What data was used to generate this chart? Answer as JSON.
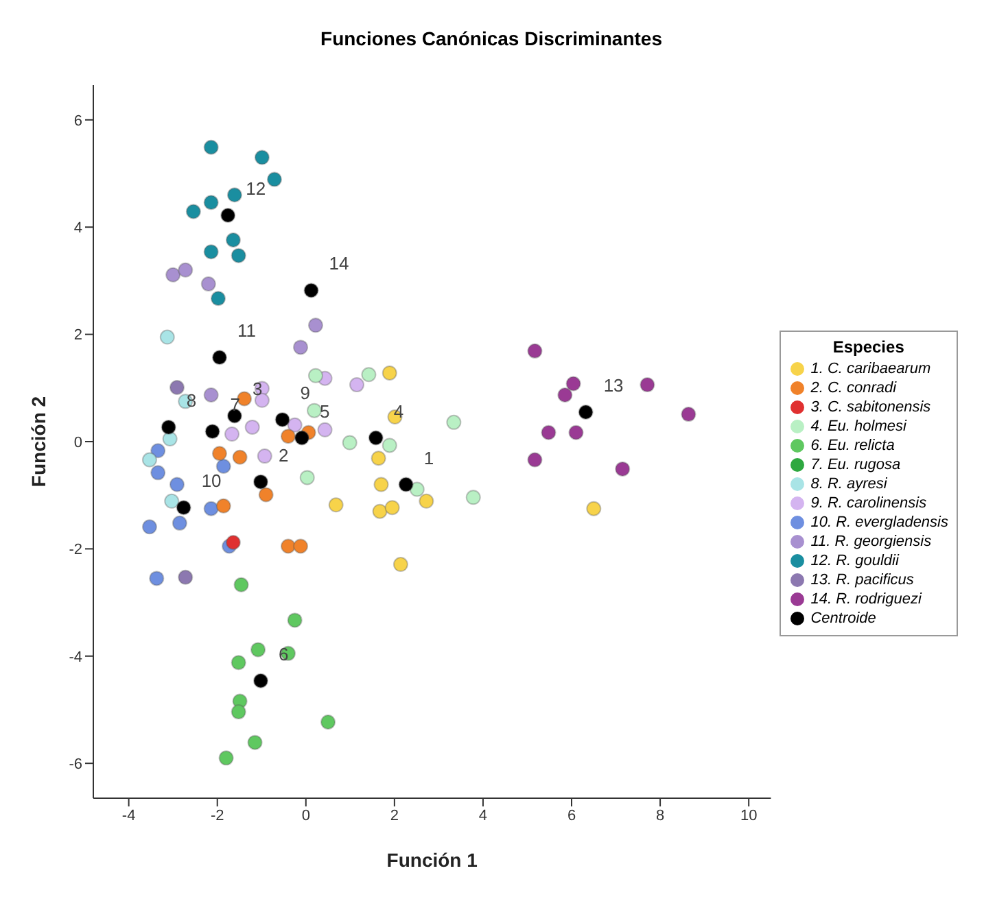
{
  "chart_data": {
    "type": "scatter",
    "title": "Funciones Canónicas Discriminantes",
    "xlabel": "Función 1",
    "ylabel": "Función 2",
    "legend_title": "Especies",
    "legend": "right",
    "marker": "circle",
    "grid": false,
    "xlim": [
      -4.8,
      10.5
    ],
    "ylim": [
      -6.65,
      6.65
    ],
    "xticks": [
      -4,
      -2,
      0,
      2,
      4,
      6,
      8,
      10
    ],
    "yticks": [
      -6,
      -4,
      -2,
      0,
      2,
      4,
      6
    ],
    "series": [
      {
        "name": "1. C. caribaearum",
        "color": "#f7d34a",
        "x": [
          1.89,
          2.01,
          1.64,
          1.7,
          0.68,
          1.67,
          1.95,
          2.72,
          2.14,
          6.5
        ],
        "values": [
          1.28,
          0.46,
          -0.31,
          -0.8,
          -1.18,
          -1.3,
          -1.23,
          -1.11,
          -2.29,
          -1.25
        ]
      },
      {
        "name": "2. C. conradi",
        "color": "#f0822a",
        "x": [
          -1.39,
          -1.95,
          -1.49,
          -0.9,
          -1.86,
          -0.4,
          0.06,
          -0.4,
          -0.12
        ],
        "values": [
          0.8,
          -0.22,
          -0.29,
          -0.99,
          -1.2,
          0.1,
          0.17,
          -1.95,
          -1.95
        ]
      },
      {
        "name": "3. C. sabitonensis",
        "color": "#e03030",
        "x": [
          -1.64
        ],
        "values": [
          -1.88
        ]
      },
      {
        "name": "4. Eu. holmesi",
        "color": "#b9f0c4",
        "x": [
          0.22,
          1.42,
          3.34,
          0.99,
          1.89,
          0.03,
          2.51,
          3.78,
          0.19
        ],
        "values": [
          1.23,
          1.25,
          0.36,
          -0.02,
          -0.07,
          -0.67,
          -0.89,
          -1.04,
          0.58
        ]
      },
      {
        "name": "6. Eu. relicta",
        "color": "#5fc860",
        "x": [
          -1.46,
          -0.25,
          -1.08,
          -0.4,
          -1.52,
          -1.49,
          -1.52,
          0.5,
          -1.15,
          -1.8
        ],
        "values": [
          -2.67,
          -3.33,
          -3.88,
          -3.95,
          -4.12,
          -4.84,
          -5.04,
          -5.23,
          -5.61,
          -5.9
        ]
      },
      {
        "name": "7. Eu. rugosa",
        "color": "#2ea840"
      },
      {
        "name": "8. R. ayresi",
        "color": "#a9e4e6",
        "x": [
          -3.13,
          -2.72,
          -3.07,
          -3.53,
          -3.03
        ],
        "values": [
          1.95,
          0.75,
          0.05,
          -0.34,
          -1.11
        ]
      },
      {
        "name": "9. R. carolinensis",
        "color": "#d4b4f0",
        "x": [
          -0.99,
          -0.99,
          -1.67,
          -1.21,
          -0.93,
          0.43,
          1.15,
          -0.25,
          0.43
        ],
        "values": [
          0.99,
          0.77,
          0.14,
          0.27,
          -0.27,
          0.22,
          1.06,
          0.31,
          1.18
        ]
      },
      {
        "name": "10. R. evergladensis",
        "color": "#6e8fe0",
        "x": [
          -3.34,
          -3.34,
          -2.91,
          -1.86,
          -2.14,
          -3.53,
          -2.85,
          -1.73,
          -3.37
        ],
        "values": [
          -0.17,
          -0.58,
          -0.8,
          -0.46,
          -1.25,
          -1.59,
          -1.52,
          -1.95,
          -2.55
        ]
      },
      {
        "name": "11. R. georgiensis",
        "color": "#a890d0",
        "x": [
          -3.0,
          -2.72,
          -2.2,
          -2.14,
          0.22,
          -0.12
        ],
        "values": [
          3.11,
          3.2,
          2.94,
          0.87,
          2.17,
          1.76
        ]
      },
      {
        "name": "12. R. gouldii",
        "color": "#1a8ea0",
        "x": [
          -2.14,
          -0.99,
          -0.71,
          -1.61,
          -2.14,
          -2.54,
          -1.64,
          -2.14,
          -1.52,
          -1.98
        ],
        "values": [
          5.49,
          5.3,
          4.89,
          4.6,
          4.46,
          4.29,
          3.76,
          3.54,
          3.47,
          2.67
        ]
      },
      {
        "name": "13. R. pacificus",
        "color": "#8c78b0",
        "x": [
          -2.91,
          -2.72
        ],
        "values": [
          1.01,
          -2.53
        ]
      },
      {
        "name": "14. R. rodriguezi",
        "color": "#9a3a94",
        "x": [
          5.17,
          6.04,
          5.85,
          7.71,
          8.64,
          5.48,
          6.1,
          5.17,
          7.15
        ],
        "values": [
          1.69,
          1.08,
          0.87,
          1.06,
          0.51,
          0.17,
          0.17,
          -0.34,
          -0.51
        ]
      },
      {
        "name": "Centroide",
        "color": "#000000",
        "x": [
          2.26,
          -1.02,
          -1.61,
          1.58,
          -0.09,
          -1.02,
          -2.11,
          -3.1,
          -0.53,
          -2.76,
          -1.95,
          -1.76,
          6.32,
          0.12
        ],
        "values": [
          -0.8,
          -0.75,
          0.48,
          0.07,
          0.07,
          -4.46,
          0.19,
          0.27,
          0.41,
          -1.23,
          1.57,
          4.22,
          0.55,
          2.82
        ]
      }
    ],
    "annotations": [
      {
        "text": "1",
        "x": 2.26,
        "y": -0.8
      },
      {
        "text": "2",
        "x": -1.02,
        "y": -0.75
      },
      {
        "text": "3",
        "x": -1.61,
        "y": 0.48
      },
      {
        "text": "4",
        "x": 1.58,
        "y": 0.07
      },
      {
        "text": "5",
        "x": -0.09,
        "y": 0.07
      },
      {
        "text": "6",
        "x": -1.02,
        "y": -4.46
      },
      {
        "text": "7",
        "x": -2.11,
        "y": 0.19
      },
      {
        "text": "8",
        "x": -3.1,
        "y": 0.27
      },
      {
        "text": "9",
        "x": -0.53,
        "y": 0.41
      },
      {
        "text": "10",
        "x": -2.76,
        "y": -1.23
      },
      {
        "text": "11",
        "x": -1.95,
        "y": 1.57
      },
      {
        "text": "12",
        "x": -1.76,
        "y": 4.22
      },
      {
        "text": "13",
        "x": 6.32,
        "y": 0.55
      },
      {
        "text": "14",
        "x": 0.12,
        "y": 2.82
      }
    ]
  }
}
